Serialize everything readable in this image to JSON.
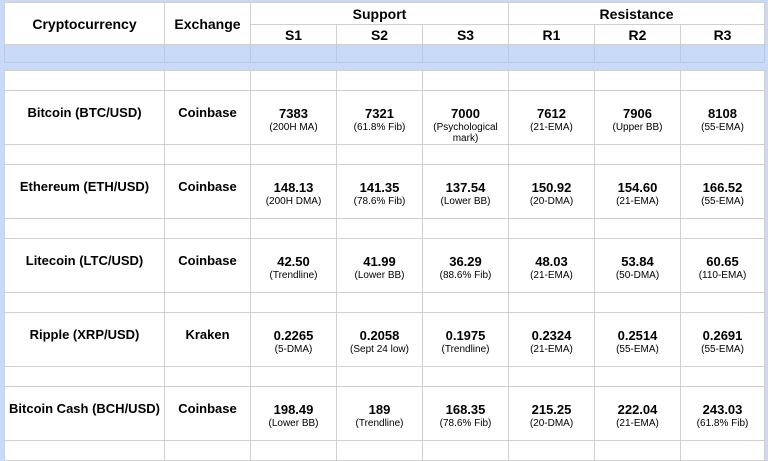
{
  "header": {
    "crypto": "Cryptocurrency",
    "exchange": "Exchange",
    "support": "Support",
    "resistance": "Resistance",
    "levels": [
      "S1",
      "S2",
      "S3",
      "R1",
      "R2",
      "R3"
    ]
  },
  "rows": [
    {
      "name": "Bitcoin (BTC/USD)",
      "exchange": "Coinbase",
      "cells": [
        [
          "7383",
          "(200H MA)"
        ],
        [
          "7321",
          "(61.8% Fib)"
        ],
        [
          "7000",
          "(Psychological mark)"
        ],
        [
          "7612",
          "(21-EMA)"
        ],
        [
          "7906",
          "(Upper BB)"
        ],
        [
          "8108",
          "(55-EMA)"
        ]
      ]
    },
    {
      "name": "Ethereum (ETH/USD)",
      "exchange": "Coinbase",
      "cells": [
        [
          "148.13",
          "(200H DMA)"
        ],
        [
          "141.35",
          "(78.6% Fib)"
        ],
        [
          "137.54",
          "(Lower BB)"
        ],
        [
          "150.92",
          "(20-DMA)"
        ],
        [
          "154.60",
          "(21-EMA)"
        ],
        [
          "166.52",
          "(55-EMA)"
        ]
      ]
    },
    {
      "name": "Litecoin (LTC/USD)",
      "exchange": "Coinbase",
      "cells": [
        [
          "42.50",
          "(Trendline)"
        ],
        [
          "41.99",
          "(Lower BB)"
        ],
        [
          "36.29",
          "(88.6% Fib)"
        ],
        [
          "48.03",
          "(21-EMA)"
        ],
        [
          "53.84",
          "(50-DMA)"
        ],
        [
          "60.65",
          "(110-EMA)"
        ]
      ]
    },
    {
      "name": "Ripple (XRP/USD)",
      "exchange": "Kraken",
      "cells": [
        [
          "0.2265",
          "(5-DMA)"
        ],
        [
          "0.2058",
          "(Sept 24 low)"
        ],
        [
          "0.1975",
          "(Trendline)"
        ],
        [
          "0.2324",
          "(21-EMA)"
        ],
        [
          "0.2514",
          "(55-EMA)"
        ],
        [
          "0.2691",
          "(55-EMA)"
        ]
      ]
    },
    {
      "name": "Bitcoin Cash (BCH/USD)",
      "exchange": "Coinbase",
      "cells": [
        [
          "198.49",
          "(Lower BB)"
        ],
        [
          "189",
          "(Trendline)"
        ],
        [
          "168.35",
          "(78.6% Fib)"
        ],
        [
          "215.25",
          "(20-DMA)"
        ],
        [
          "222.04",
          "(21-EMA)"
        ],
        [
          "243.03",
          "(61.8% Fib)"
        ]
      ]
    }
  ]
}
